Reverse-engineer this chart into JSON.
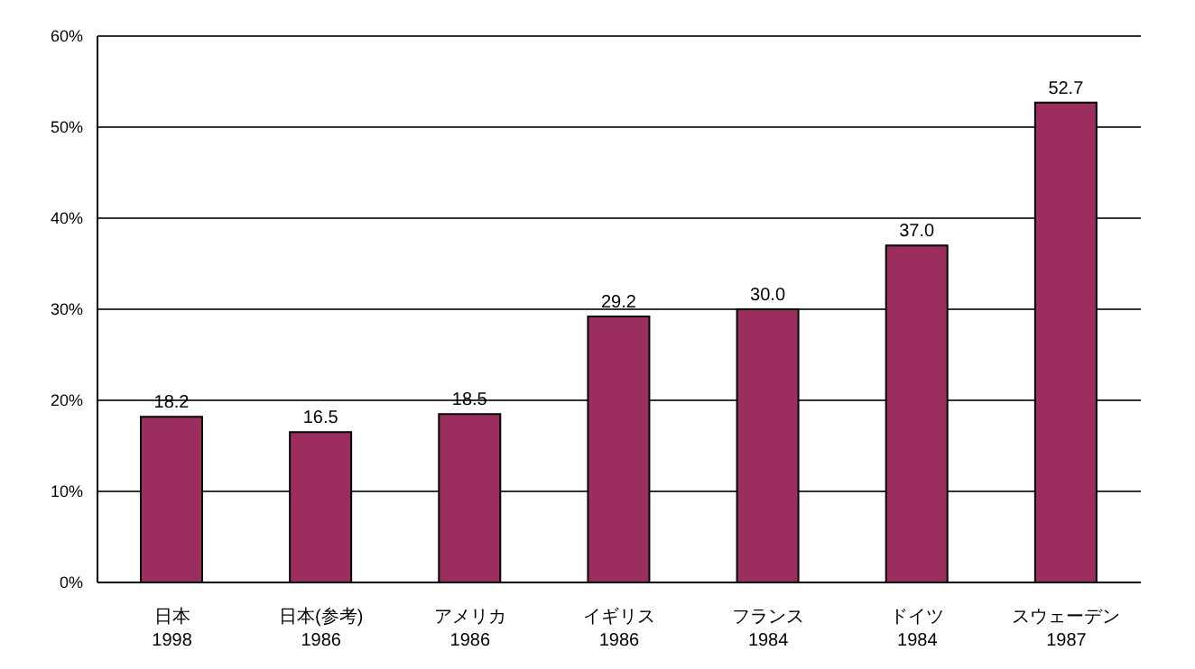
{
  "chart_data": {
    "type": "bar",
    "categories": [
      "日本\n1998",
      "日本(参考)\n1986",
      "アメリカ\n1986",
      "イギリス\n1986",
      "フランス\n1984",
      "ドイツ\n1984",
      "スウェーデン\n1987"
    ],
    "values": [
      18.2,
      16.5,
      18.5,
      29.2,
      30.0,
      37.0,
      52.7
    ],
    "value_labels": [
      "18.2",
      "16.5",
      "18.5",
      "29.2",
      "30.0",
      "37.0",
      "52.7"
    ],
    "color": "#9b2d5f",
    "ylim": [
      0,
      60
    ],
    "yticks": [
      {
        "value": 0,
        "label": "0%"
      },
      {
        "value": 10,
        "label": "10%"
      },
      {
        "value": 20,
        "label": "20%"
      },
      {
        "value": 30,
        "label": "30%"
      },
      {
        "value": 40,
        "label": "40%"
      },
      {
        "value": 50,
        "label": "50%"
      },
      {
        "value": 60,
        "label": "60%"
      }
    ],
    "grid": "y"
  }
}
